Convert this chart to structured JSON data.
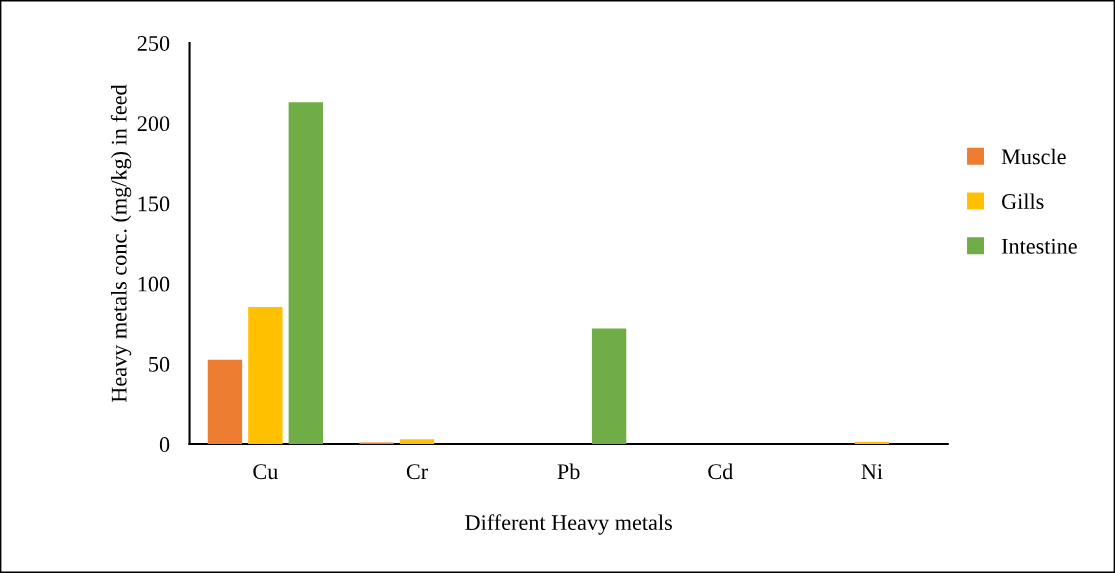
{
  "chart_data": {
    "type": "bar",
    "xlabel": "Different Heavy metals",
    "ylabel": "Heavy metals conc. (mg/kg) in feed",
    "categories": [
      "Cu",
      "Cr",
      "Pb",
      "Cd",
      "Ni"
    ],
    "series": [
      {
        "name": "Muscle",
        "color": "#ed7d31",
        "values": [
          52.5,
          1,
          0,
          0,
          0
        ]
      },
      {
        "name": "Gills",
        "color": "#ffc000",
        "values": [
          85.5,
          3,
          0,
          0,
          1.5
        ]
      },
      {
        "name": "Intestine",
        "color": "#70ad47",
        "values": [
          213,
          0,
          72,
          0,
          0
        ]
      }
    ],
    "ylim": [
      0,
      250
    ],
    "yticks": [
      0,
      50,
      100,
      150,
      200,
      250
    ],
    "grid": false,
    "legend": "right"
  }
}
